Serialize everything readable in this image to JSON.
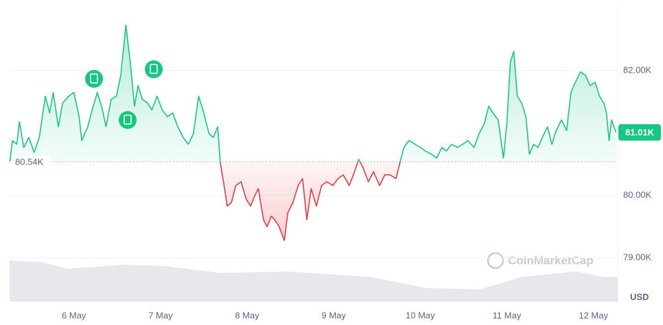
{
  "chart_data": {
    "type": "line",
    "x": [
      5.26,
      5.29,
      5.34,
      5.37,
      5.42,
      5.48,
      5.54,
      5.6,
      5.67,
      5.72,
      5.76,
      5.82,
      5.87,
      5.94,
      6.0,
      6.06,
      6.09,
      6.16,
      6.21,
      6.27,
      6.33,
      6.37,
      6.43,
      6.49,
      6.54,
      6.57,
      6.6,
      6.65,
      6.7,
      6.74,
      6.79,
      6.85,
      6.9,
      6.96,
      7.02,
      7.08,
      7.14,
      7.2,
      7.26,
      7.32,
      7.38,
      7.44,
      7.49,
      7.56,
      7.61,
      7.66,
      7.69,
      7.74,
      7.77,
      7.82,
      7.87,
      7.93,
      7.99,
      8.04,
      8.09,
      8.13,
      8.19,
      8.23,
      8.28,
      8.32,
      8.37,
      8.43,
      8.47,
      8.53,
      8.59,
      8.64,
      8.69,
      8.74,
      8.8,
      8.86,
      8.92,
      8.99,
      9.05,
      9.11,
      9.18,
      9.24,
      9.29,
      9.34,
      9.4,
      9.46,
      9.53,
      9.59,
      9.65,
      9.72,
      9.77,
      9.81,
      9.87,
      9.94,
      10.0,
      10.06,
      10.13,
      10.19,
      10.25,
      10.3,
      10.36,
      10.43,
      10.49,
      10.55,
      10.62,
      10.68,
      10.74,
      10.79,
      10.84,
      10.9,
      10.96,
      11.0,
      11.04,
      11.08,
      11.12,
      11.17,
      11.22,
      11.26,
      11.31,
      11.36,
      11.41,
      11.47,
      11.52,
      11.57,
      11.63,
      11.69,
      11.74,
      11.79,
      11.85,
      11.91,
      11.96,
      12.02,
      12.07,
      12.12,
      12.15,
      12.18,
      12.21,
      12.26
    ],
    "values": [
      80550,
      80880,
      80820,
      81180,
      80770,
      80930,
      80690,
      80930,
      81590,
      81320,
      81650,
      81100,
      81480,
      81590,
      81650,
      81260,
      80880,
      81100,
      81370,
      81650,
      81370,
      81100,
      81540,
      81590,
      81920,
      82310,
      82730,
      82140,
      81430,
      81760,
      81540,
      81480,
      81370,
      81590,
      81370,
      81260,
      81320,
      81100,
      80930,
      80820,
      80990,
      81590,
      81370,
      80990,
      80930,
      81100,
      80530,
      80110,
      79830,
      79890,
      80160,
      80220,
      79940,
      79830,
      80000,
      80110,
      79610,
      79500,
      79670,
      79610,
      79500,
      79280,
      79720,
      79890,
      80160,
      80270,
      79610,
      80110,
      79830,
      80160,
      80220,
      80160,
      80270,
      80330,
      80160,
      80380,
      80580,
      80440,
      80220,
      80380,
      80160,
      80330,
      80330,
      80270,
      80550,
      80770,
      80880,
      80820,
      80770,
      80710,
      80660,
      80600,
      80770,
      80710,
      80820,
      80770,
      80820,
      80880,
      80770,
      80990,
      81150,
      81430,
      81320,
      81210,
      80600,
      81150,
      82140,
      82310,
      81590,
      81480,
      81260,
      80660,
      80820,
      80770,
      80930,
      81100,
      80820,
      81040,
      81210,
      81040,
      81650,
      81810,
      81980,
      81920,
      81760,
      81810,
      81590,
      81480,
      81320,
      80880,
      81210,
      81010
    ],
    "up_color": "#16c784",
    "down_color": "#ea3943",
    "baseline": {
      "value": 80540,
      "label": "80.54K"
    },
    "current": {
      "value": 81010,
      "label": "81.01K"
    },
    "xlim": [
      5.257,
      12.28
    ],
    "xticks": [
      {
        "value": 6,
        "label": "6 May"
      },
      {
        "value": 7,
        "label": "7 May"
      },
      {
        "value": 8,
        "label": "8 May"
      },
      {
        "value": 9,
        "label": "9 May"
      },
      {
        "value": 10,
        "label": "10 May"
      },
      {
        "value": 11,
        "label": "11 May"
      },
      {
        "value": 12,
        "label": "12 May"
      }
    ],
    "ylim": [
      78300,
      83020
    ],
    "yticks": [
      {
        "value": 82000,
        "label": "82.00K"
      },
      {
        "value": 80000,
        "label": "80.00K"
      },
      {
        "value": 79000,
        "label": "79.00K"
      }
    ],
    "grid": true,
    "currency": "USD",
    "watermark": "CoinMarketCap"
  }
}
